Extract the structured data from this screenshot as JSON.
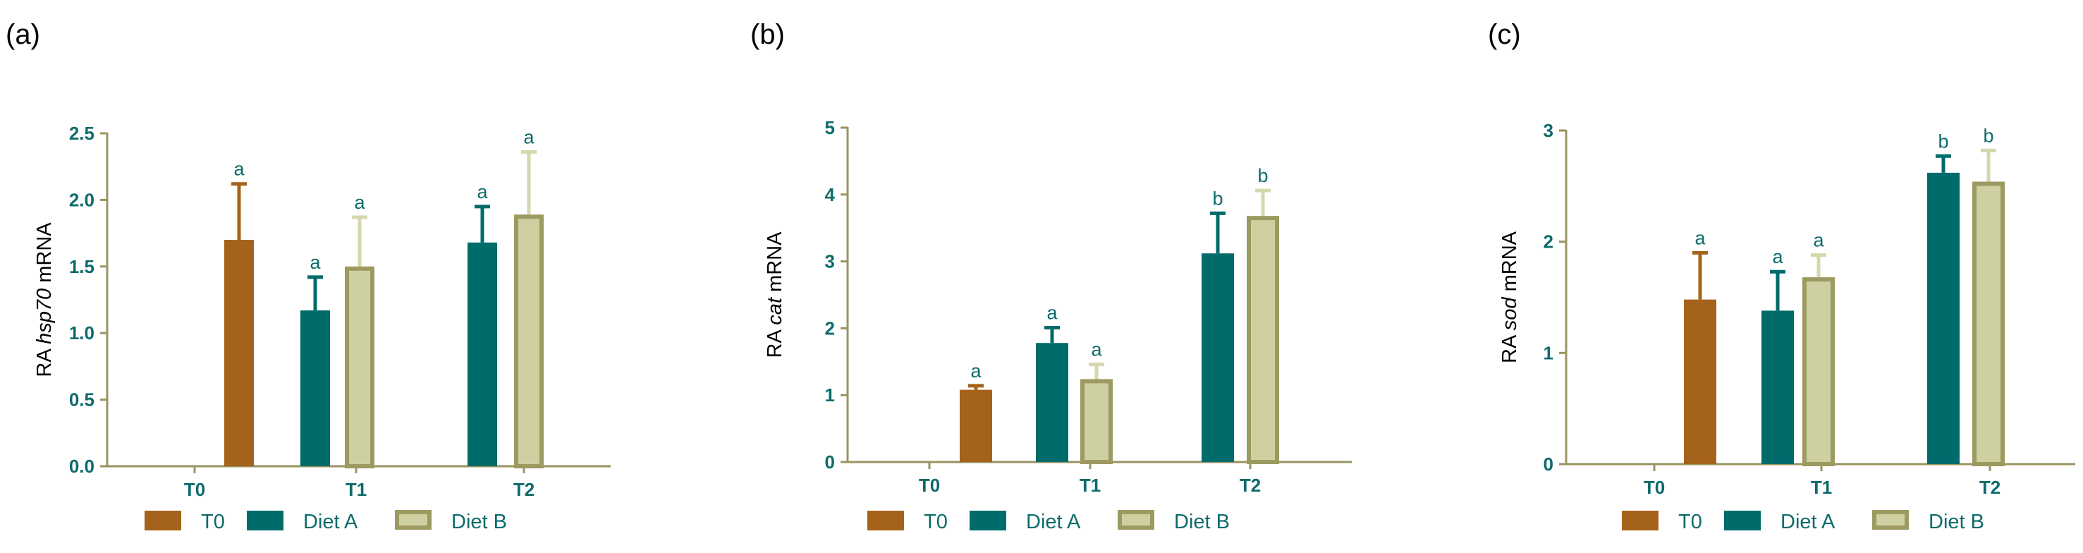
{
  "colors": {
    "axis": "#9a9460",
    "tick_text": "#0e6b6b",
    "letter": "#0e6b6b",
    "panel_label": "#000000",
    "axis_label": "#000000",
    "T0": "#a5621a",
    "Diet A": "#006b6b",
    "Diet B": "#cfd0a2",
    "Diet B stroke": "#9c9a60"
  },
  "legend": [
    {
      "key": "T0",
      "label": "T0"
    },
    {
      "key": "Diet A",
      "label": "Diet A"
    },
    {
      "key": "Diet B",
      "label": "Diet B"
    }
  ],
  "chart_data": [
    {
      "type": "bar",
      "panel_label": "(a)",
      "ylabel_prefix": "RA ",
      "ylabel_gene": "hsp70",
      "ylabel_suffix": " mRNA",
      "categories": [
        "T0",
        "T1",
        "T2"
      ],
      "ylim": [
        0,
        2.5
      ],
      "yticks": [
        "0.0",
        "0.5",
        "1.0",
        "1.5",
        "2.0",
        "2.5"
      ],
      "series": [
        {
          "name": "T0",
          "values": [
            1.7,
            null,
            null
          ],
          "errors": [
            0.42,
            null,
            null
          ],
          "letters": [
            "a",
            null,
            null
          ]
        },
        {
          "name": "Diet A",
          "values": [
            null,
            1.17,
            1.68
          ],
          "errors": [
            null,
            0.25,
            0.27
          ],
          "letters": [
            null,
            "a",
            "a"
          ]
        },
        {
          "name": "Diet B",
          "values": [
            null,
            1.5,
            1.89
          ],
          "errors": [
            null,
            0.37,
            0.47
          ],
          "letters": [
            null,
            "a",
            "a"
          ]
        }
      ]
    },
    {
      "type": "bar",
      "panel_label": "(b)",
      "ylabel_prefix": "RA ",
      "ylabel_gene": "cat",
      "ylabel_suffix": " mRNA",
      "categories": [
        "T0",
        "T1",
        "T2"
      ],
      "ylim": [
        0,
        5
      ],
      "yticks": [
        "0",
        "1",
        "2",
        "3",
        "4",
        "5"
      ],
      "series": [
        {
          "name": "T0",
          "values": [
            1.08,
            null,
            null
          ],
          "errors": [
            0.06,
            null,
            null
          ],
          "letters": [
            "a",
            null,
            null
          ]
        },
        {
          "name": "Diet A",
          "values": [
            null,
            1.78,
            3.12
          ],
          "errors": [
            null,
            0.23,
            0.6
          ],
          "letters": [
            null,
            "a",
            "b"
          ]
        },
        {
          "name": "Diet B",
          "values": [
            null,
            1.24,
            3.68
          ],
          "errors": [
            null,
            0.22,
            0.38
          ],
          "letters": [
            null,
            "a",
            "b"
          ]
        }
      ]
    },
    {
      "type": "bar",
      "panel_label": "(c)",
      "ylabel_prefix": "RA ",
      "ylabel_gene": "sod",
      "ylabel_suffix": " mRNA",
      "categories": [
        "T0",
        "T1",
        "T2"
      ],
      "ylim": [
        0,
        3
      ],
      "yticks": [
        "0",
        "1",
        "2",
        "3"
      ],
      "series": [
        {
          "name": "T0",
          "values": [
            1.48,
            null,
            null
          ],
          "errors": [
            0.42,
            null,
            null
          ],
          "letters": [
            "a",
            null,
            null
          ]
        },
        {
          "name": "Diet A",
          "values": [
            null,
            1.38,
            2.62
          ],
          "errors": [
            null,
            0.35,
            0.15
          ],
          "letters": [
            null,
            "a",
            "b"
          ]
        },
        {
          "name": "Diet B",
          "values": [
            null,
            1.68,
            2.54
          ],
          "errors": [
            null,
            0.2,
            0.28
          ],
          "letters": [
            null,
            "a",
            "b"
          ]
        }
      ]
    }
  ]
}
